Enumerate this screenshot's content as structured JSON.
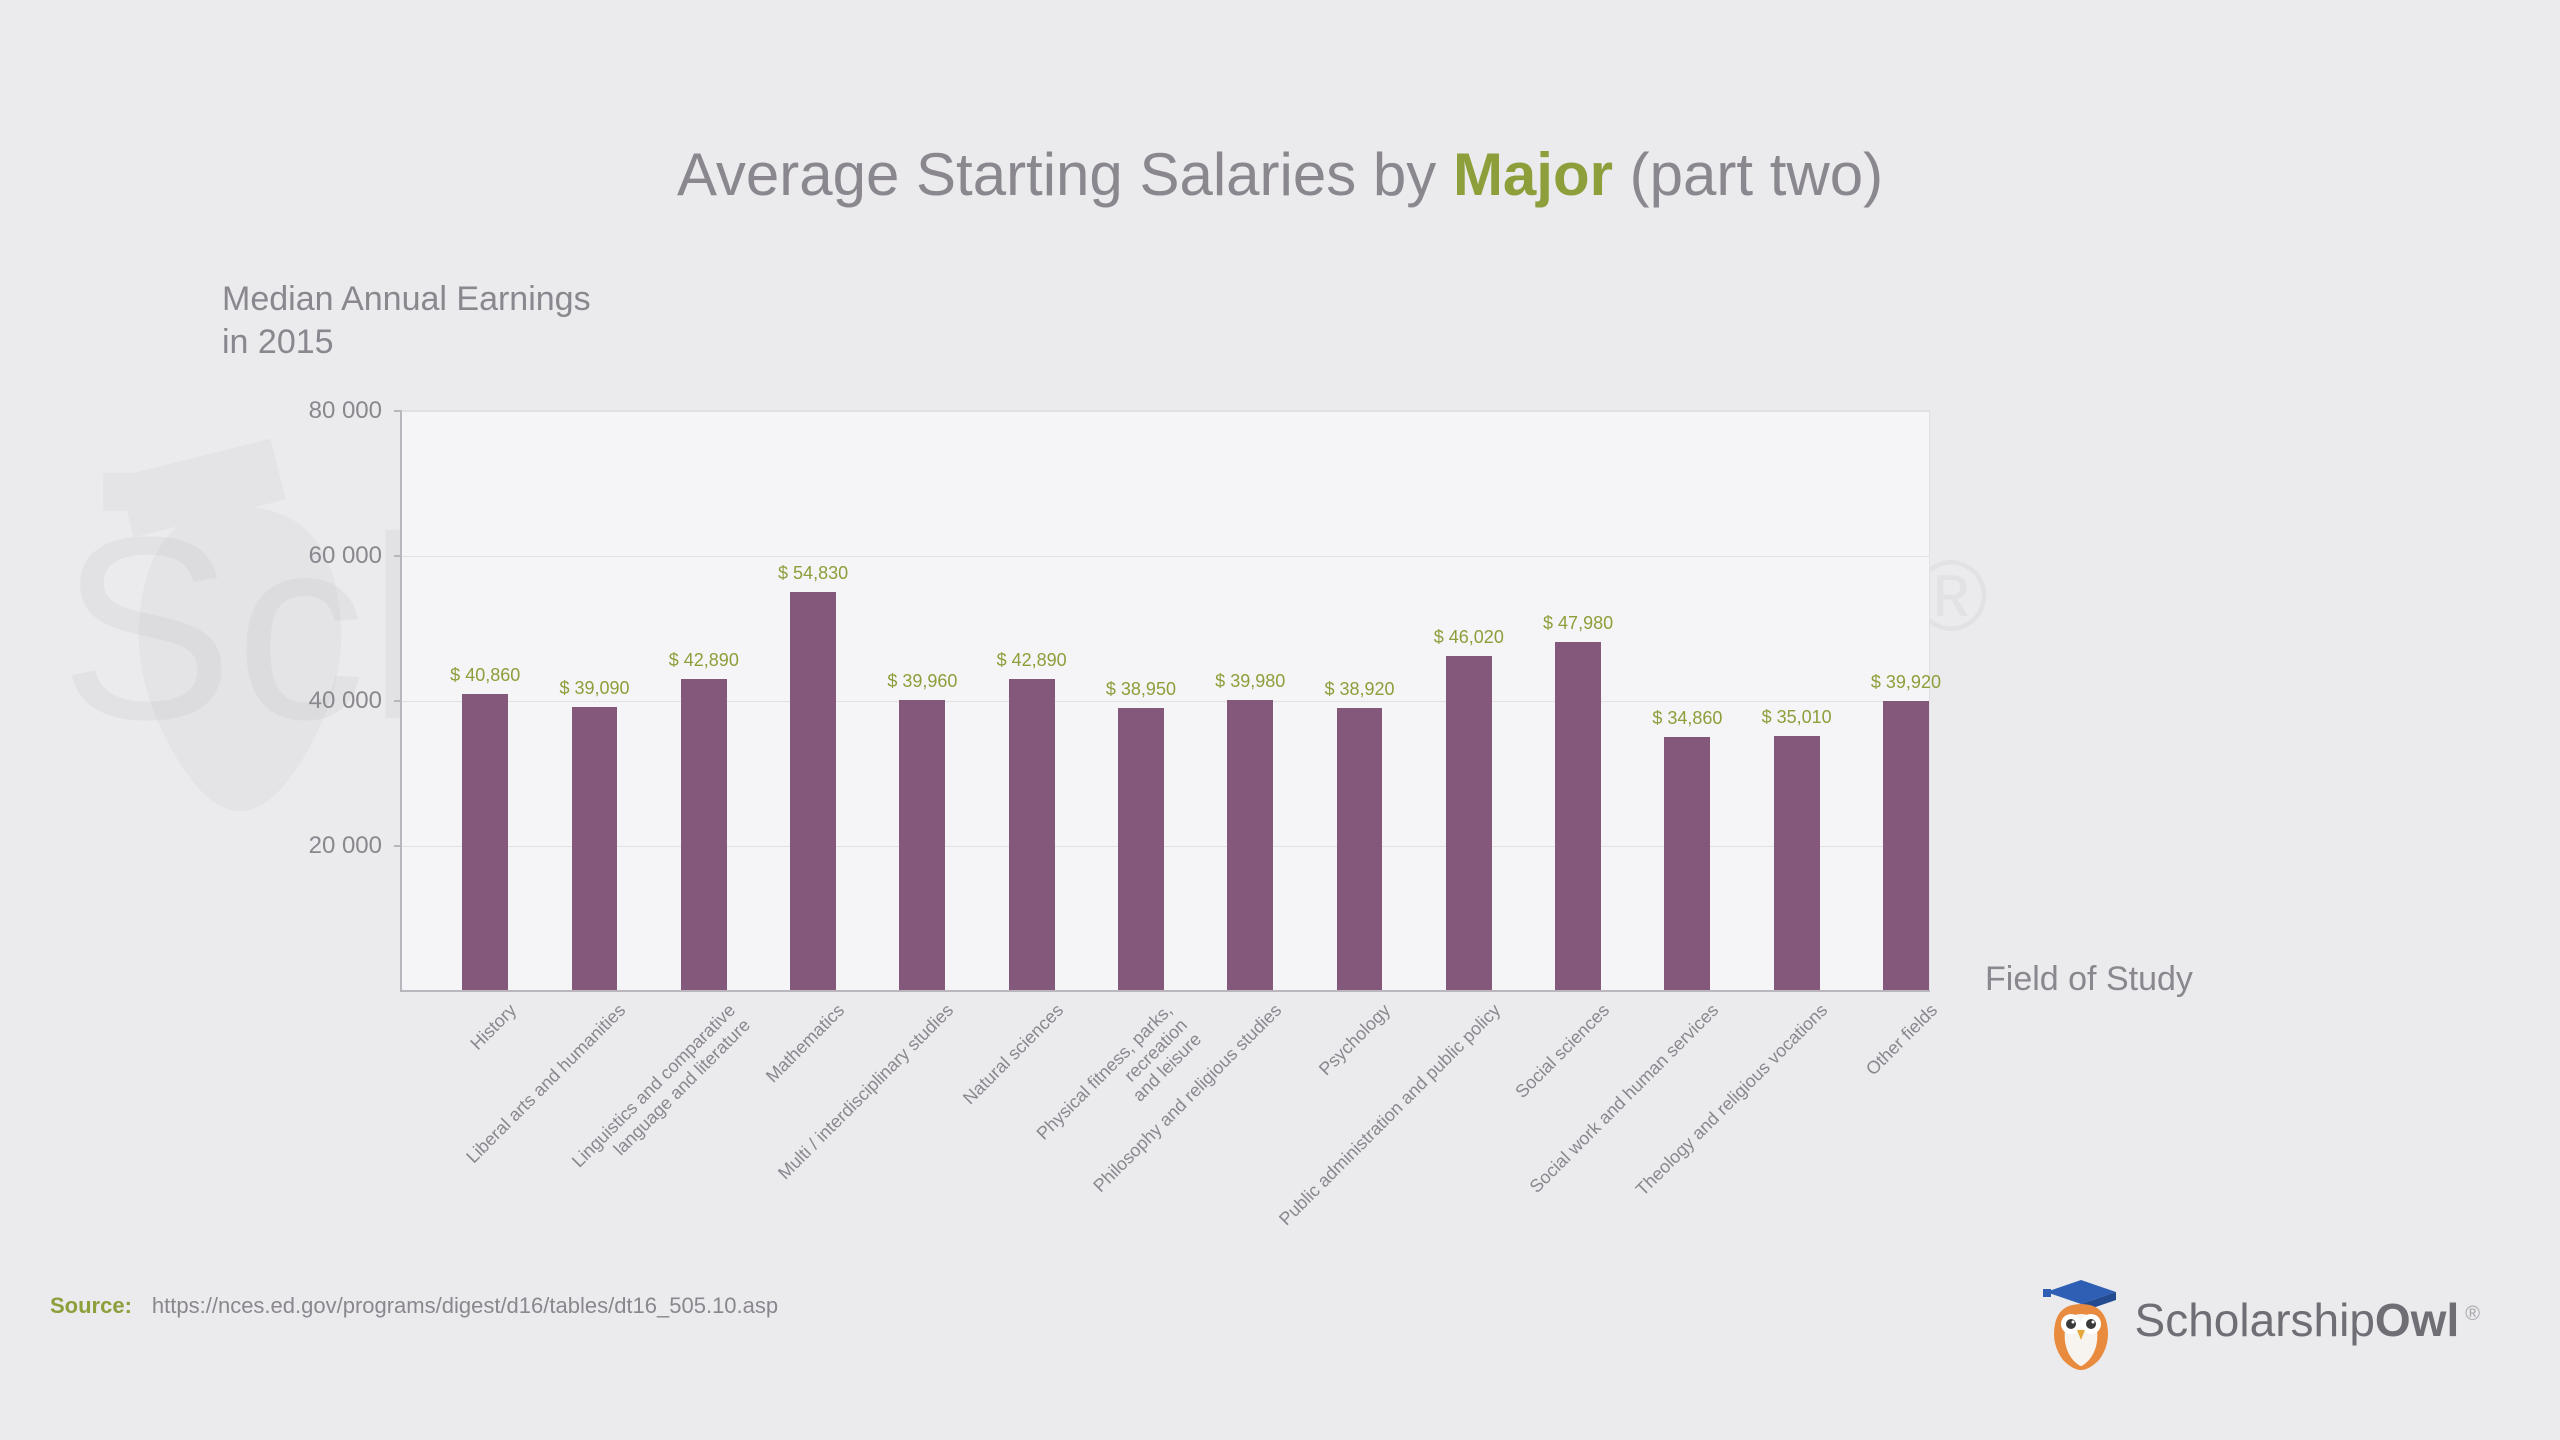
{
  "title_pre": "Average Starting Salaries by ",
  "title_accent": "Major",
  "title_post": " (part two)",
  "ylabel_line1": "Median Annual Earnings",
  "ylabel_line2": "in 2015",
  "xlabel": "Field of Study",
  "source_label": "Source:",
  "source_url": "https://nces.ed.gov/programs/digest/d16/tables/dt16_505.10.asp",
  "logo_part1": "Scholarship",
  "logo_part2": "Owl",
  "logo_reg": "®",
  "chart": {
    "type": "bar",
    "ylim": [
      0,
      80000
    ],
    "yticks": [
      20000,
      40000,
      60000,
      80000
    ],
    "ytick_labels": [
      "20 000",
      "40 000",
      "60 000",
      "80 000"
    ],
    "background_color": "#f5f4f6",
    "grid_color": "#e2e0e5",
    "axis_color": "#b9b7bd",
    "bar_color": "#83587a",
    "value_label_color": "#8c9f3a",
    "value_label_fontsize": 18,
    "category_label_color": "#8a878e",
    "category_label_fontsize": 18,
    "category_label_rotation_deg": -45,
    "title_fontsize": 60,
    "title_color": "#8a878e",
    "title_accent_color": "#8c9f3a",
    "bar_width_ratio": 0.42,
    "categories": [
      {
        "label": "History",
        "value": 40860,
        "value_label": "$ 40,860"
      },
      {
        "label": "Liberal arts and humanities",
        "value": 39090,
        "value_label": "$ 39,090"
      },
      {
        "label": "Linguistics and comparative\nlanguage and literature",
        "value": 42890,
        "value_label": "$ 42,890"
      },
      {
        "label": "Mathematics",
        "value": 54830,
        "value_label": "$ 54,830"
      },
      {
        "label": "Multi / interdisciplinary studies",
        "value": 39960,
        "value_label": "$ 39,960"
      },
      {
        "label": "Natural sciences",
        "value": 42890,
        "value_label": "$ 42,890"
      },
      {
        "label": "Physical fitness, parks, recreation\nand leisure",
        "value": 38950,
        "value_label": "$ 38,950"
      },
      {
        "label": "Philosophy and religious studies",
        "value": 39980,
        "value_label": "$ 39,980"
      },
      {
        "label": "Psychology",
        "value": 38920,
        "value_label": "$ 38,920"
      },
      {
        "label": "Public administration and public policy",
        "value": 46020,
        "value_label": "$ 46,020"
      },
      {
        "label": "Social sciences",
        "value": 47980,
        "value_label": "$ 47,980"
      },
      {
        "label": "Social work and human services",
        "value": 34860,
        "value_label": "$ 34,860"
      },
      {
        "label": "Theology and religious vocations",
        "value": 35010,
        "value_label": "$ 35,010"
      },
      {
        "label": "Other fields",
        "value": 39920,
        "value_label": "$ 39,920"
      }
    ]
  },
  "page_background": "#ebeaed",
  "watermark_text": "ScholarshipOwl",
  "watermark_reg": "®"
}
